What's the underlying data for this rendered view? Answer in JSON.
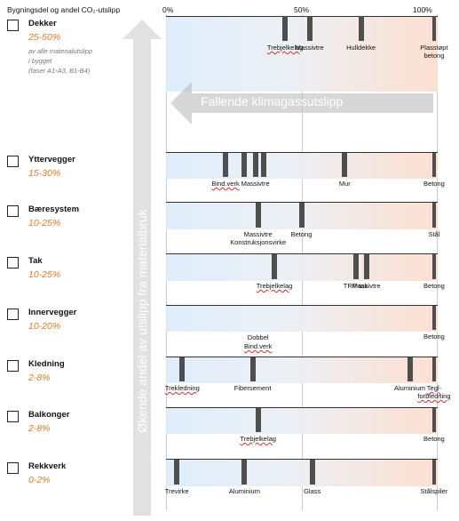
{
  "header": {
    "title": "Bygningsdel og andel CO₂-utslipp",
    "scale": [
      "0%",
      "50%",
      "100%"
    ]
  },
  "arrows": {
    "horizontal_label": "Fallende klimagassutslipp",
    "vertical_label": "Økende andel av utslipp fra materialbruk"
  },
  "rows": [
    {
      "name": "Dekker",
      "share": "25-50%",
      "note": [
        "av alle materialutslipp",
        "i bygget",
        "(faser A1-A3, B1-B4)"
      ],
      "markers": [
        {
          "pct": 44,
          "label": "Trebjelkelag",
          "squiggly": true
        },
        {
          "pct": 53,
          "label": "Massivtre"
        },
        {
          "pct": 72,
          "label": "Hulldekke"
        },
        {
          "pct": 99,
          "label": "Plasstøpt\nbetong"
        }
      ]
    },
    {
      "name": "Yttervegger",
      "share": "15-30%",
      "markers": [
        {
          "pct": 22,
          "label": "Bind.verk",
          "squiggly": true
        },
        {
          "pct": 29
        },
        {
          "pct": 33,
          "label": "Massivtre"
        },
        {
          "pct": 36
        },
        {
          "pct": 66,
          "label": "Mur"
        },
        {
          "pct": 99,
          "label": "Betong"
        }
      ]
    },
    {
      "name": "Bæresystem",
      "share": "10-25%",
      "markers": [
        {
          "pct": 34,
          "label": "Massivtre\nKonstruksjonsvirke"
        },
        {
          "pct": 50,
          "label": "Betong"
        },
        {
          "pct": 99,
          "label": "Stål"
        }
      ]
    },
    {
      "name": "Tak",
      "share": "10-25%",
      "markers": [
        {
          "pct": 40,
          "label": "Trebjelkelag",
          "squiggly": true
        },
        {
          "pct": 70,
          "label": "TRP-tak"
        },
        {
          "pct": 74,
          "label": "Massivtre"
        },
        {
          "pct": 99,
          "label": "Betong"
        }
      ]
    },
    {
      "name": "Innervegger",
      "share": "10-20%",
      "markers": [
        {
          "pct": 99,
          "label": "Betong"
        }
      ],
      "labels": [
        {
          "pct": 34,
          "line": 1,
          "label": "Dobbel"
        },
        {
          "pct": 34,
          "line": 2,
          "label": "Bind.verk",
          "squiggly": true
        }
      ]
    },
    {
      "name": "Kledning",
      "share": "2-8%",
      "markers": [
        {
          "pct": 6,
          "label": "Trekledning",
          "squiggly": true
        },
        {
          "pct": 32,
          "label": "Fibersement"
        },
        {
          "pct": 90,
          "label": "Aluminium"
        },
        {
          "pct": 99,
          "label": "Tegl-\nforbledning",
          "squiggly": true
        }
      ]
    },
    {
      "name": "Balkonger",
      "share": "2-8%",
      "markers": [
        {
          "pct": 34,
          "label": "Trebjelkelag",
          "squiggly": true
        },
        {
          "pct": 99,
          "label": "Betong"
        }
      ]
    },
    {
      "name": "Rekkverk",
      "share": "0-2%",
      "markers": [
        {
          "pct": 4,
          "label": "Trevirke"
        },
        {
          "pct": 29,
          "label": "Aluminium"
        },
        {
          "pct": 54,
          "label": "Glass"
        },
        {
          "pct": 99,
          "label": "Stålspiler"
        }
      ]
    }
  ]
}
